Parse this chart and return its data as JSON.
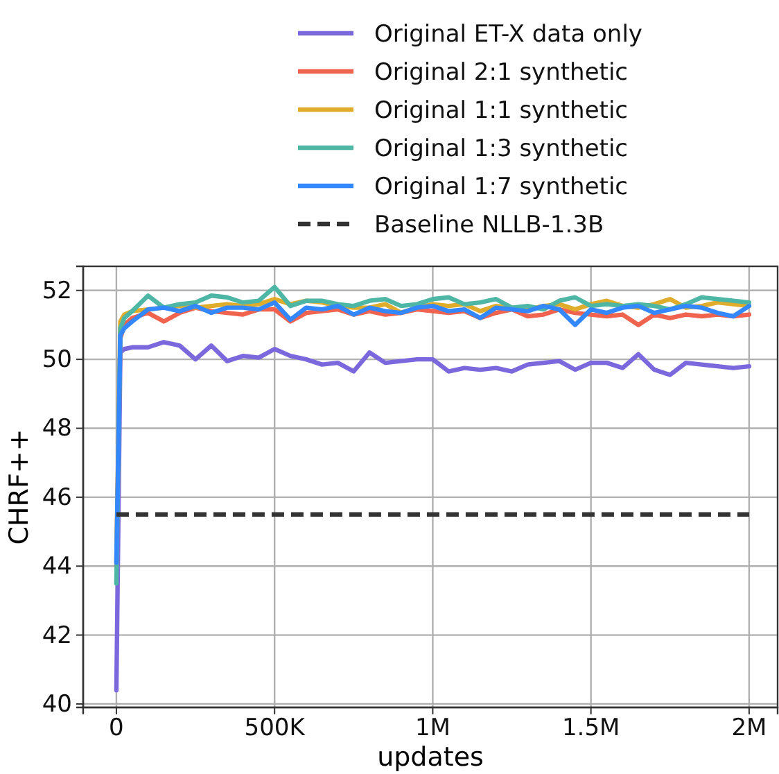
{
  "chart_data": {
    "type": "line",
    "xlabel": "updates",
    "ylabel": "CHRF++",
    "x": [
      0,
      12500,
      25000,
      50000,
      100000,
      150000,
      200000,
      250000,
      300000,
      350000,
      400000,
      450000,
      500000,
      550000,
      600000,
      650000,
      700000,
      750000,
      800000,
      850000,
      900000,
      950000,
      1000000,
      1050000,
      1100000,
      1150000,
      1200000,
      1250000,
      1300000,
      1350000,
      1400000,
      1450000,
      1500000,
      1550000,
      1600000,
      1650000,
      1700000,
      1750000,
      1800000,
      1850000,
      1900000,
      1950000,
      2000000
    ],
    "series": [
      {
        "name": "Original ET-X data only",
        "color": "#7b68dd",
        "values": [
          40.4,
          50.2,
          50.3,
          50.35,
          50.35,
          50.5,
          50.4,
          50.0,
          50.4,
          49.95,
          50.1,
          50.05,
          50.3,
          50.1,
          50.0,
          49.85,
          49.9,
          49.65,
          50.2,
          49.9,
          49.95,
          50.0,
          50.0,
          49.65,
          49.75,
          49.7,
          49.75,
          49.65,
          49.85,
          49.9,
          49.95,
          49.7,
          49.9,
          49.9,
          49.75,
          50.15,
          49.7,
          49.55,
          49.9,
          49.85,
          49.8,
          49.75,
          49.8
        ]
      },
      {
        "name": "Original 2:1 synthetic",
        "color": "#f0634e",
        "values": [
          44.0,
          50.6,
          51.0,
          51.2,
          51.35,
          51.1,
          51.35,
          51.5,
          51.4,
          51.35,
          51.3,
          51.45,
          51.45,
          51.1,
          51.35,
          51.4,
          51.45,
          51.3,
          51.4,
          51.3,
          51.35,
          51.45,
          51.4,
          51.35,
          51.4,
          51.2,
          51.35,
          51.45,
          51.25,
          51.3,
          51.45,
          51.35,
          51.3,
          51.25,
          51.3,
          51.0,
          51.3,
          51.2,
          51.3,
          51.25,
          51.3,
          51.25,
          51.3
        ]
      },
      {
        "name": "Original 1:1 synthetic",
        "color": "#e0ac2b",
        "values": [
          44.2,
          51.1,
          51.3,
          51.4,
          51.45,
          51.5,
          51.55,
          51.5,
          51.55,
          51.6,
          51.55,
          51.6,
          51.75,
          51.6,
          51.7,
          51.65,
          51.55,
          51.5,
          51.5,
          51.6,
          51.35,
          51.5,
          51.6,
          51.55,
          51.6,
          51.4,
          51.55,
          51.5,
          51.45,
          51.55,
          51.6,
          51.45,
          51.6,
          51.7,
          51.55,
          51.5,
          51.6,
          51.75,
          51.5,
          51.55,
          51.65,
          51.6,
          51.55
        ]
      },
      {
        "name": "Original 1:3 synthetic",
        "color": "#4db6a4",
        "values": [
          43.5,
          50.9,
          51.2,
          51.4,
          51.85,
          51.5,
          51.6,
          51.65,
          51.85,
          51.8,
          51.65,
          51.7,
          52.1,
          51.55,
          51.7,
          51.7,
          51.6,
          51.55,
          51.7,
          51.75,
          51.55,
          51.6,
          51.75,
          51.8,
          51.6,
          51.65,
          51.75,
          51.5,
          51.55,
          51.45,
          51.7,
          51.8,
          51.55,
          51.6,
          51.55,
          51.6,
          51.55,
          51.45,
          51.6,
          51.8,
          51.75,
          51.7,
          51.65
        ]
      },
      {
        "name": "Original 1:7 synthetic",
        "color": "#3388ff",
        "values": [
          44.1,
          50.7,
          50.9,
          51.1,
          51.45,
          51.5,
          51.4,
          51.55,
          51.35,
          51.5,
          51.5,
          51.45,
          51.65,
          51.15,
          51.5,
          51.45,
          51.55,
          51.3,
          51.5,
          51.4,
          51.35,
          51.5,
          51.55,
          51.4,
          51.45,
          51.2,
          51.5,
          51.45,
          51.4,
          51.55,
          51.45,
          51.0,
          51.45,
          51.35,
          51.5,
          51.55,
          51.35,
          51.45,
          51.55,
          51.5,
          51.35,
          51.25,
          51.55
        ]
      },
      {
        "name": "Baseline NLLB-1.3B",
        "color": "#333333",
        "line_style": "dashed",
        "x": [
          0,
          2000000
        ],
        "values": [
          45.5,
          45.5
        ]
      }
    ],
    "xlim": [
      -105000,
      2090000
    ],
    "ylim": [
      39.9,
      52.7
    ],
    "xticks": [
      0,
      {
        "value": 500000,
        "label": "500K"
      },
      {
        "value": 1000000,
        "label": "1M"
      },
      {
        "value": 1500000,
        "label": "1.5M"
      },
      {
        "value": 2000000,
        "label": "2M"
      }
    ],
    "yticks": [
      40,
      42,
      44,
      46,
      48,
      50,
      52
    ],
    "grid": true,
    "legend": "top",
    "line_style": "solid",
    "marker": "none"
  }
}
